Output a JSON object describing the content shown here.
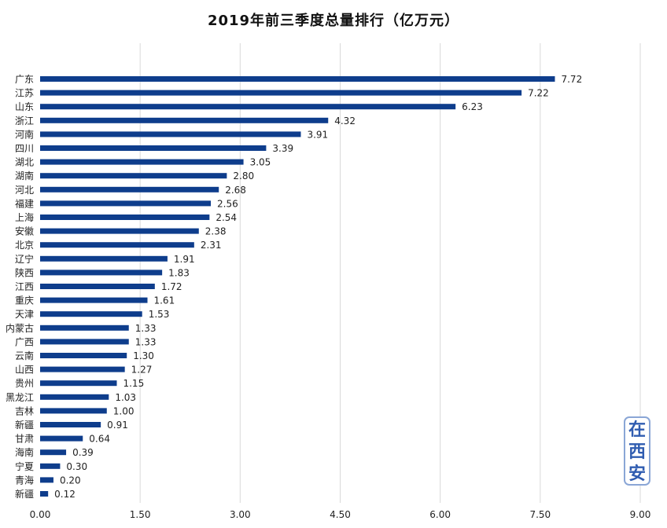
{
  "chart_data": {
    "type": "bar",
    "orientation": "horizontal",
    "title": "2019年前三季度总量排行（亿万元）",
    "categories": [
      "广东",
      "江苏",
      "山东",
      "浙江",
      "河南",
      "四川",
      "湖北",
      "湖南",
      "河北",
      "福建",
      "上海",
      "安徽",
      "北京",
      "辽宁",
      "陕西",
      "江西",
      "重庆",
      "天津",
      "内蒙古",
      "广西",
      "云南",
      "山西",
      "贵州",
      "黑龙江",
      "吉林",
      "新疆",
      "甘肃",
      "海南",
      "宁夏",
      "青海",
      "新疆"
    ],
    "values": [
      7.72,
      7.22,
      6.23,
      4.32,
      3.91,
      3.39,
      3.05,
      2.8,
      2.68,
      2.56,
      2.54,
      2.38,
      2.31,
      1.91,
      1.83,
      1.72,
      1.61,
      1.53,
      1.33,
      1.33,
      1.3,
      1.27,
      1.15,
      1.03,
      1.0,
      0.91,
      0.64,
      0.39,
      0.3,
      0.2,
      0.12
    ],
    "x_ticks": [
      "0.00",
      "1.50",
      "3.00",
      "4.50",
      "6.00",
      "7.50",
      "9.00"
    ],
    "xlim": [
      0,
      9
    ],
    "grid": true,
    "bar_color": "#0e3d8c"
  },
  "watermark": {
    "chars": [
      "在",
      "西",
      "安"
    ]
  }
}
